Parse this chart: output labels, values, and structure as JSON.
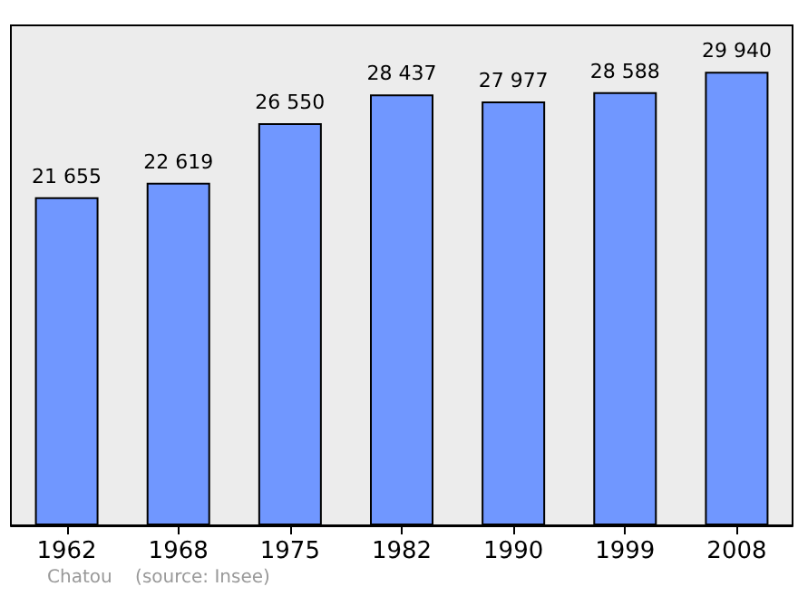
{
  "chart_data": {
    "type": "bar",
    "categories": [
      "1962",
      "1968",
      "1975",
      "1982",
      "1990",
      "1999",
      "2008"
    ],
    "values": [
      21655,
      22619,
      26550,
      28437,
      27977,
      28588,
      29940
    ],
    "value_labels": [
      "21 655",
      "22 619",
      "26 550",
      "28 437",
      "27 977",
      "28 588",
      "29 940"
    ],
    "color": "#7097ff",
    "ylim": [
      0,
      33000
    ],
    "tick_labels": "x",
    "grid": false,
    "annotations": [
      "Chatou    (source: Insee)"
    ]
  }
}
